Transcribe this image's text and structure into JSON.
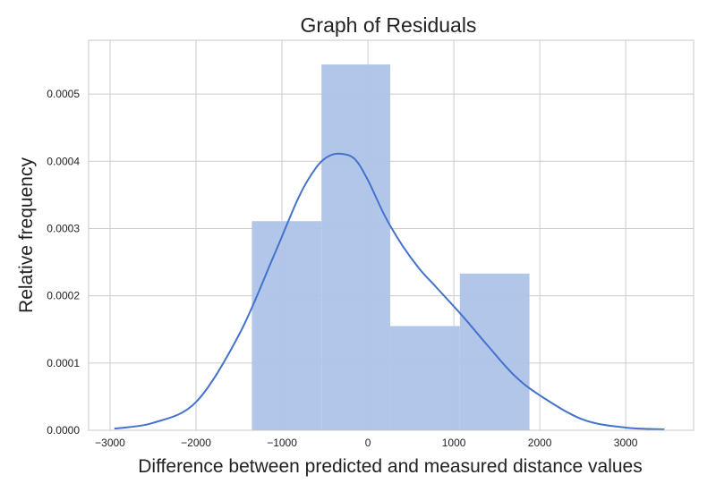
{
  "chart_data": {
    "type": "histogram+kde",
    "title": "Graph of Residuals",
    "xlabel": "Difference between predicted and measured distance values",
    "ylabel": "Relative frequency",
    "xlim": [
      -3250,
      3790
    ],
    "ylim": [
      0,
      0.00058
    ],
    "x_ticks": [
      -3000,
      -2000,
      -1000,
      0,
      1000,
      2000,
      3000
    ],
    "x_tick_labels": [
      "−3000",
      "−2000",
      "−1000",
      "0",
      "1000",
      "2000",
      "3000"
    ],
    "y_ticks": [
      0,
      0.0001,
      0.0002,
      0.0003,
      0.0004,
      0.0005
    ],
    "y_tick_labels": [
      "0.0000",
      "0.0001",
      "0.0002",
      "0.0003",
      "0.0004",
      "0.0005"
    ],
    "grid": true,
    "bins": [
      {
        "x0": -1350,
        "x1": -540,
        "density": 0.000311
      },
      {
        "x0": -540,
        "x1": 260,
        "density": 0.000544
      },
      {
        "x0": 260,
        "x1": 1070,
        "density": 0.000155
      },
      {
        "x0": 1070,
        "x1": 1880,
        "density": 0.000233
      }
    ],
    "kde": {
      "x": [
        -2950,
        -2500,
        -2000,
        -1500,
        -1100,
        -800,
        -600,
        -450,
        -300,
        -150,
        0,
        200,
        400,
        600,
        800,
        1100,
        1400,
        1700,
        2000,
        2500,
        3000,
        3450
      ],
      "y": [
        2.5e-06,
        1.1e-05,
        4.2e-05,
        0.000142,
        0.000258,
        0.000348,
        0.000391,
        0.000408,
        0.000411,
        0.000403,
        0.000372,
        0.000318,
        0.000275,
        0.00024,
        0.000212,
        0.00017,
        0.000125,
        8.2e-05,
        5.2e-05,
        1.6e-05,
        4e-06,
        1.5e-06
      ]
    },
    "colors": {
      "bars": "#aec3e8",
      "kde_line": "#4472cc",
      "grid": "#cccccc",
      "frame": "#c8c8c8"
    }
  }
}
